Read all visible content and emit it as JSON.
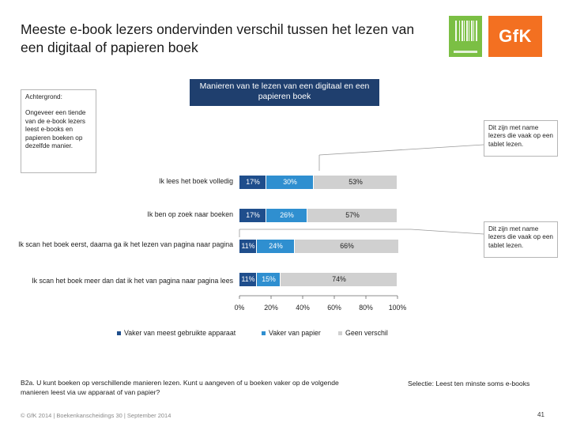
{
  "title": "Meeste e-book lezers ondervinden verschil tussen het lezen van een digitaal of papieren boek",
  "background": {
    "label": "Achtergrond:",
    "text": "Ongeveer een tiende van de e-book lezers leest e-books en papieren boeken op dezelfde manier."
  },
  "logo": {
    "brand": "GfK"
  },
  "callouts": [
    "Dit zijn met name lezers die vaak op een tablet lezen.",
    "Dit zijn met name lezers die vaak op een tablet lezen."
  ],
  "question": "B2a. U kunt boeken op verschillende manieren lezen. Kunt u aangeven of u boeken vaker op de volgende manieren leest via uw apparaat of van papier?",
  "selection": "Selectie: Leest ten minste soms e-books",
  "footer": "© GfK 2014 | Boekenkanscheidings 30 | September 2014",
  "page_number": "41",
  "colors": {
    "header": "#1f3f6e",
    "apparaat": "#1f4e8c",
    "papier": "#2f8fd0",
    "geen_verschil": "#d0d0d0",
    "brand_orange": "#f37021",
    "brand_green": "#7bbf44"
  },
  "chart_data": {
    "type": "bar",
    "orientation": "horizontal",
    "stacked": true,
    "title": "Manieren van te lezen van een digitaal en een papieren boek",
    "categories": [
      "Ik lees het boek volledig",
      "Ik ben op zoek naar boeken",
      "Ik scan het boek eerst, daarna ga ik het lezen van pagina naar pagina",
      "Ik scan het boek meer dan dat ik het van pagina naar pagina lees"
    ],
    "series": [
      {
        "name": "Vaker van meest gebruikte apparaat",
        "values": [
          17,
          17,
          11,
          11
        ],
        "labels": [
          "17%",
          "17%",
          "11%",
          "11%"
        ]
      },
      {
        "name": "Vaker van papier",
        "values": [
          30,
          26,
          24,
          15
        ],
        "labels": [
          "30%",
          "26%",
          "24%",
          "15%"
        ]
      },
      {
        "name": "Geen verschil",
        "values": [
          53,
          57,
          66,
          74
        ],
        "labels": [
          "53%",
          "57%",
          "66%",
          "74%"
        ]
      }
    ],
    "xlim": [
      0,
      100
    ],
    "xticks": [
      "0%",
      "20%",
      "40%",
      "60%",
      "80%",
      "100%"
    ],
    "legend_position": "bottom",
    "grid": false
  }
}
